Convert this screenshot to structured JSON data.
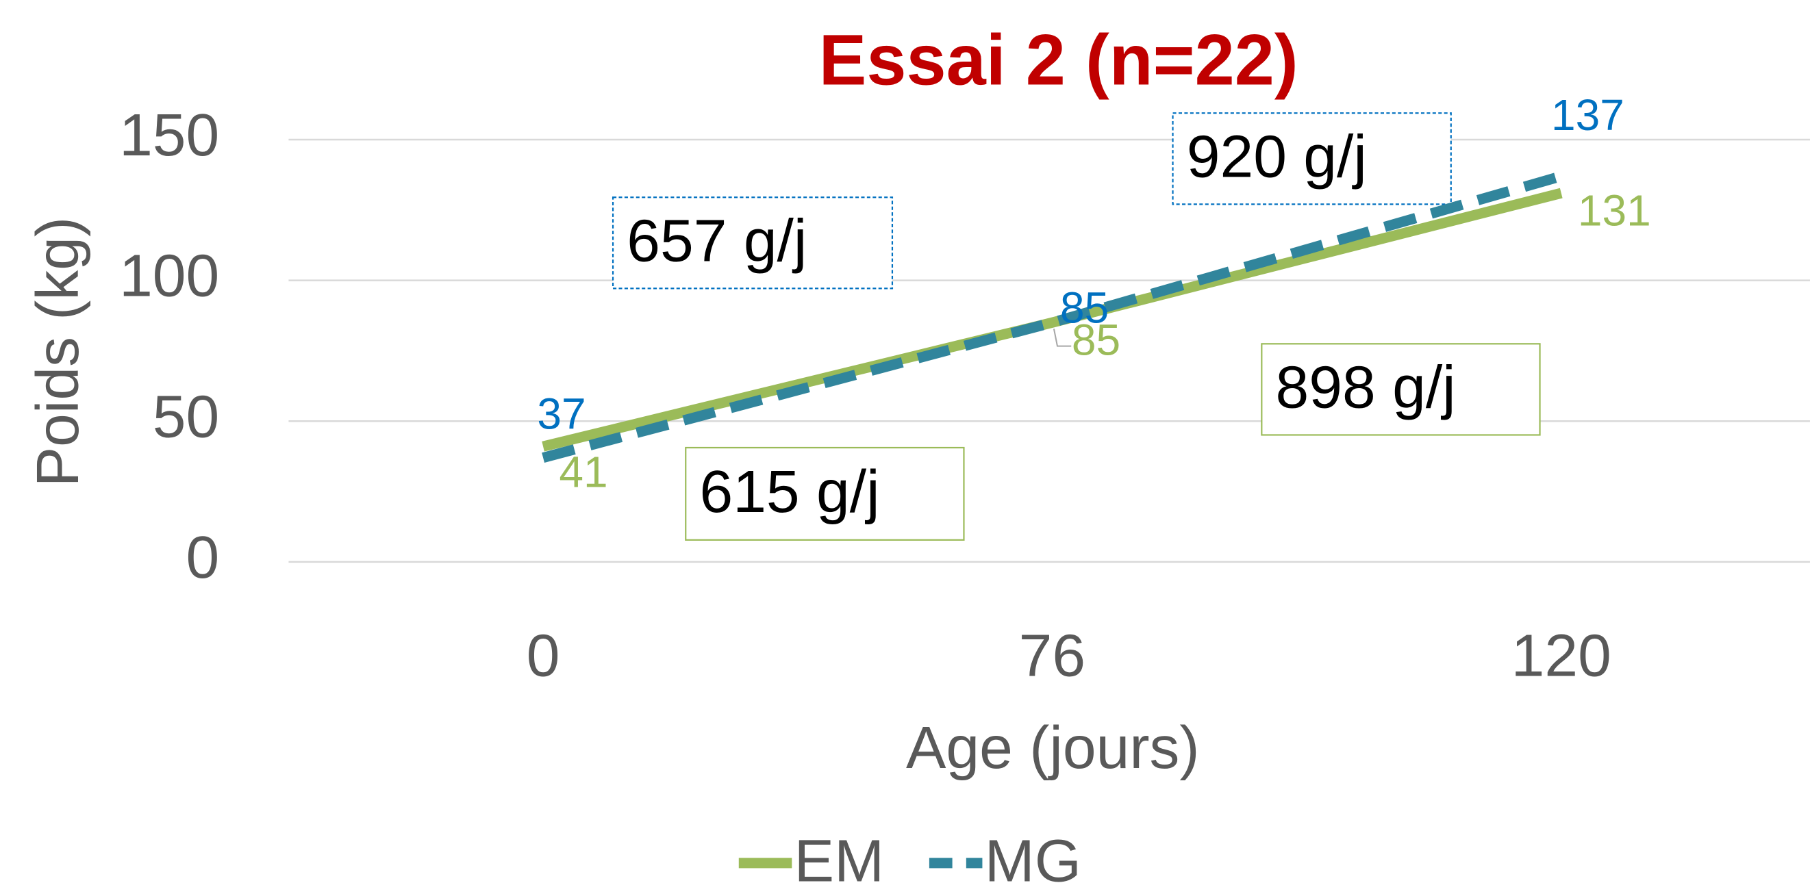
{
  "chart_data": {
    "type": "line",
    "title": "Essai 2  (n=22)",
    "title_color": "#c00000",
    "x_label": "Age (jours)",
    "y_label": "Poids (kg)",
    "categories": [
      "0",
      "76",
      "120"
    ],
    "series": [
      {
        "name": "EM",
        "color": "#9bbb59",
        "dash": false,
        "values": [
          41,
          85,
          131
        ]
      },
      {
        "name": "MG",
        "color": "#31859c",
        "dash": true,
        "label_color": "#0070c0",
        "values": [
          37,
          85,
          137
        ]
      }
    ],
    "ylim": [
      0,
      150
    ],
    "yticks": [
      0,
      50,
      100,
      150
    ],
    "grid": true,
    "legend": "bottom",
    "annotations": [
      {
        "text": "657 g/j",
        "color": "#0070c0"
      },
      {
        "text": "920 g/j",
        "color": "#0070c0"
      },
      {
        "text": "615 g/j",
        "color": "#9bbb59"
      },
      {
        "text": "898 g/j",
        "color": "#9bbb59"
      }
    ]
  }
}
